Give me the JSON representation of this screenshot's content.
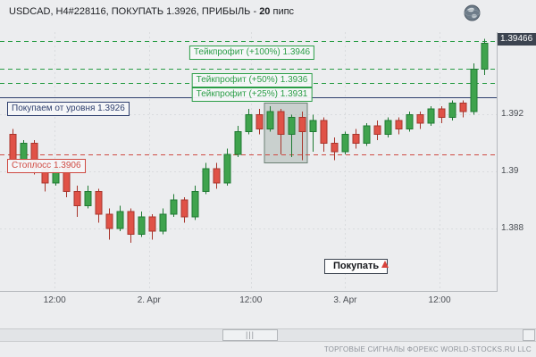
{
  "header": {
    "title_prefix": "USDCAD, H4#228116, ПОКУПАТЬ 1.3926, ПРИБЫЛЬ - ",
    "profit_value": "20",
    "profit_suffix": " пипс"
  },
  "chart_data": {
    "type": "candlestick",
    "symbol": "USDCAD",
    "timeframe": "H4",
    "ylim": [
      1.3858,
      1.3949
    ],
    "ohlc_order": [
      "open",
      "high",
      "low",
      "close"
    ],
    "price_axis_labels": [
      {
        "text": "1.392",
        "price": 1.392
      },
      {
        "text": "1.39",
        "price": 1.39
      },
      {
        "text": "1.388",
        "price": 1.388
      }
    ],
    "current_price": {
      "text": "1.39466",
      "price": 1.39466
    },
    "time_axis_labels": [
      {
        "text": "12:00",
        "pos": 0.11
      },
      {
        "text": "2. Apr",
        "pos": 0.3
      },
      {
        "text": "12:00",
        "pos": 0.505
      },
      {
        "text": "3. Apr",
        "pos": 0.695
      },
      {
        "text": "12:00",
        "pos": 0.885
      }
    ],
    "levels": [
      {
        "id": "tp100",
        "label": "Тейкпрофит (+100%) 1.3946",
        "price": 1.3946,
        "color": "#2a9d46",
        "style": "dashed",
        "label_pos": "below-center"
      },
      {
        "id": "tp50",
        "label": "Тейкпрофит (+50%) 1.3936",
        "price": 1.3936,
        "color": "#2a9d46",
        "style": "dashed",
        "label_pos": "below-center"
      },
      {
        "id": "tp25",
        "label": "Тейкпрофит (+25%) 1.3931",
        "price": 1.3931,
        "color": "#2a9d46",
        "style": "dashed",
        "label_pos": "below-center"
      },
      {
        "id": "buy-level",
        "label": "Покупаем от уровня 1.3926",
        "price": 1.3926,
        "color": "#2e3f6e",
        "style": "solid",
        "label_pos": "below-left"
      },
      {
        "id": "stoploss",
        "label": "Стоплосс 1.3906",
        "price": 1.3906,
        "color": "#cf4a42",
        "style": "dashed",
        "label_pos": "below-left"
      }
    ],
    "highlight_zone": {
      "start_index": 24,
      "end_index": 27,
      "price_top": 1.3924,
      "price_bottom": 1.3903
    },
    "candles": [
      [
        1.3913,
        1.3915,
        1.3902,
        1.3904
      ],
      [
        1.3904,
        1.3911,
        1.3903,
        1.391
      ],
      [
        1.391,
        1.3911,
        1.3899,
        1.3901
      ],
      [
        1.3901,
        1.3903,
        1.3893,
        1.3896
      ],
      [
        1.3896,
        1.3903,
        1.3895,
        1.3901
      ],
      [
        1.3901,
        1.3902,
        1.3891,
        1.3893
      ],
      [
        1.3893,
        1.3895,
        1.3884,
        1.3888
      ],
      [
        1.3888,
        1.3895,
        1.3887,
        1.3893
      ],
      [
        1.3893,
        1.3894,
        1.3882,
        1.3885
      ],
      [
        1.3885,
        1.3887,
        1.3876,
        1.388
      ],
      [
        1.388,
        1.3888,
        1.3879,
        1.3886
      ],
      [
        1.3886,
        1.3887,
        1.3875,
        1.3878
      ],
      [
        1.3878,
        1.3886,
        1.3877,
        1.3884
      ],
      [
        1.3884,
        1.3885,
        1.3876,
        1.3879
      ],
      [
        1.3879,
        1.3887,
        1.3878,
        1.3885
      ],
      [
        1.3885,
        1.3892,
        1.3884,
        1.389
      ],
      [
        1.389,
        1.3891,
        1.3882,
        1.3884
      ],
      [
        1.3884,
        1.3895,
        1.3883,
        1.3893
      ],
      [
        1.3893,
        1.3903,
        1.3892,
        1.3901
      ],
      [
        1.3901,
        1.3903,
        1.3894,
        1.3896
      ],
      [
        1.3896,
        1.3908,
        1.3895,
        1.3906
      ],
      [
        1.3906,
        1.3916,
        1.3905,
        1.3914
      ],
      [
        1.3914,
        1.3922,
        1.3913,
        1.392
      ],
      [
        1.392,
        1.3922,
        1.3913,
        1.3915
      ],
      [
        1.3915,
        1.3923,
        1.3914,
        1.3921
      ],
      [
        1.3921,
        1.3922,
        1.3906,
        1.3913
      ],
      [
        1.3913,
        1.392,
        1.3905,
        1.3919
      ],
      [
        1.3919,
        1.3921,
        1.3904,
        1.3914
      ],
      [
        1.3914,
        1.392,
        1.3907,
        1.3918
      ],
      [
        1.3918,
        1.3919,
        1.3907,
        1.391
      ],
      [
        1.391,
        1.3912,
        1.3904,
        1.3907
      ],
      [
        1.3907,
        1.3914,
        1.3906,
        1.3913
      ],
      [
        1.3913,
        1.3915,
        1.3908,
        1.391
      ],
      [
        1.391,
        1.3917,
        1.3909,
        1.3916
      ],
      [
        1.3916,
        1.3918,
        1.3911,
        1.3913
      ],
      [
        1.3913,
        1.3919,
        1.3912,
        1.3918
      ],
      [
        1.3918,
        1.3919,
        1.3913,
        1.3915
      ],
      [
        1.3915,
        1.3921,
        1.3914,
        1.392
      ],
      [
        1.392,
        1.3921,
        1.3915,
        1.3917
      ],
      [
        1.3917,
        1.3923,
        1.3916,
        1.3922
      ],
      [
        1.3922,
        1.3923,
        1.3917,
        1.3919
      ],
      [
        1.3919,
        1.3925,
        1.3918,
        1.3924
      ],
      [
        1.3924,
        1.3925,
        1.3919,
        1.3921
      ],
      [
        1.3921,
        1.3938,
        1.392,
        1.3936
      ],
      [
        1.3936,
        1.39466,
        1.3934,
        1.3945
      ]
    ]
  },
  "buy_button": {
    "label": "Покупать"
  },
  "scrollbar": {
    "grip": "|||"
  },
  "footer": {
    "credit": "ТОРГОВЫЕ СИГНАЛЫ ФОРЕКС WORLD-STOCKS.RU LLC"
  },
  "colors": {
    "up": "#3fa34d",
    "up_dark": "#1f7a33",
    "down": "#e05247",
    "down_dark": "#a8352c",
    "grid": "#d9dbde",
    "bg": "#ecedef",
    "badge_bg": "#3c4450",
    "zone_fill": "rgba(120,144,130,0.30)",
    "zone_border": "#6b7f74"
  }
}
